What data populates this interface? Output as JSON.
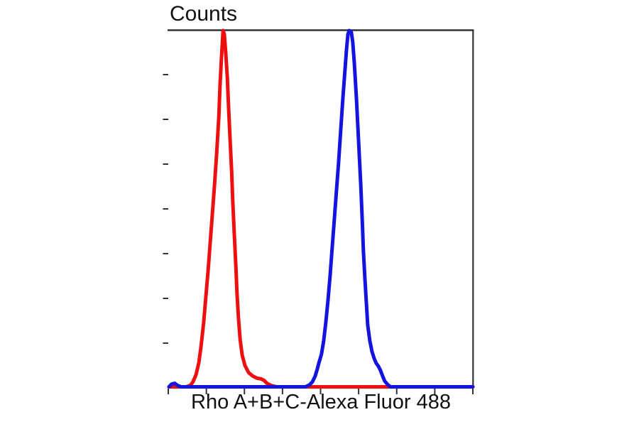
{
  "page": {
    "background_color": "#ffffff",
    "text_color": "#111111",
    "frame_color": "#333333"
  },
  "chart_data": {
    "type": "line",
    "subtype": "flow-cytometry-overlay-histogram",
    "title": "Counts",
    "xlabel": "Rho A+B+C-Alexa Fluor 488",
    "ylabel": "Counts",
    "grid": false,
    "legend_position": "none",
    "x_tick_labels": [],
    "y_tick_labels": [],
    "x_tick_count": 9,
    "y_tick_count": 7,
    "xlim_normalized": [
      0,
      1
    ],
    "ylim_normalized": [
      0,
      1
    ],
    "series": [
      {
        "name": "red-peak",
        "color": "#ee1010",
        "peak_x_normalized": 0.178,
        "peak_y_normalized": 1.0,
        "points": [
          [
            0,
            0
          ],
          [
            0.056,
            0
          ],
          [
            0.07,
            0.004
          ],
          [
            0.079,
            0.014
          ],
          [
            0.089,
            0.034
          ],
          [
            0.098,
            0.066
          ],
          [
            0.105,
            0.109
          ],
          [
            0.114,
            0.179
          ],
          [
            0.121,
            0.249
          ],
          [
            0.129,
            0.328
          ],
          [
            0.136,
            0.408
          ],
          [
            0.143,
            0.487
          ],
          [
            0.15,
            0.567
          ],
          [
            0.157,
            0.656
          ],
          [
            0.164,
            0.756
          ],
          [
            0.168,
            0.845
          ],
          [
            0.173,
            0.924
          ],
          [
            0.178,
            0.998
          ],
          [
            0.182,
            0.988
          ],
          [
            0.187,
            0.934
          ],
          [
            0.192,
            0.865
          ],
          [
            0.196,
            0.785
          ],
          [
            0.201,
            0.696
          ],
          [
            0.206,
            0.606
          ],
          [
            0.21,
            0.517
          ],
          [
            0.215,
            0.427
          ],
          [
            0.22,
            0.338
          ],
          [
            0.224,
            0.258
          ],
          [
            0.229,
            0.189
          ],
          [
            0.234,
            0.133
          ],
          [
            0.241,
            0.089
          ],
          [
            0.25,
            0.06
          ],
          [
            0.262,
            0.04
          ],
          [
            0.276,
            0.03
          ],
          [
            0.29,
            0.024
          ],
          [
            0.304,
            0.022
          ],
          [
            0.313,
            0.018
          ],
          [
            0.322,
            0.01
          ],
          [
            0.336,
            0.004
          ],
          [
            0.355,
            0
          ],
          [
            1,
            0
          ]
        ]
      },
      {
        "name": "blue-peak",
        "color": "#1414e0",
        "peak_x_normalized": 0.593,
        "peak_y_normalized": 1.0,
        "points": [
          [
            0,
            0
          ],
          [
            0.009,
            0.008
          ],
          [
            0.019,
            0.01
          ],
          [
            0.028,
            0.004
          ],
          [
            0.04,
            0
          ],
          [
            0.449,
            0
          ],
          [
            0.463,
            0.006
          ],
          [
            0.472,
            0.014
          ],
          [
            0.481,
            0.03
          ],
          [
            0.488,
            0.05
          ],
          [
            0.493,
            0.066
          ],
          [
            0.498,
            0.08
          ],
          [
            0.502,
            0.093
          ],
          [
            0.509,
            0.129
          ],
          [
            0.516,
            0.179
          ],
          [
            0.523,
            0.239
          ],
          [
            0.53,
            0.308
          ],
          [
            0.537,
            0.388
          ],
          [
            0.544,
            0.467
          ],
          [
            0.551,
            0.547
          ],
          [
            0.558,
            0.626
          ],
          [
            0.565,
            0.716
          ],
          [
            0.572,
            0.805
          ],
          [
            0.579,
            0.885
          ],
          [
            0.584,
            0.944
          ],
          [
            0.589,
            0.988
          ],
          [
            0.593,
            0.998
          ],
          [
            0.6,
            0.994
          ],
          [
            0.605,
            0.964
          ],
          [
            0.61,
            0.905
          ],
          [
            0.617,
            0.805
          ],
          [
            0.624,
            0.686
          ],
          [
            0.631,
            0.567
          ],
          [
            0.636,
            0.467
          ],
          [
            0.64,
            0.378
          ],
          [
            0.645,
            0.298
          ],
          [
            0.65,
            0.229
          ],
          [
            0.654,
            0.173
          ],
          [
            0.661,
            0.129
          ],
          [
            0.668,
            0.099
          ],
          [
            0.675,
            0.08
          ],
          [
            0.682,
            0.066
          ],
          [
            0.689,
            0.058
          ],
          [
            0.696,
            0.046
          ],
          [
            0.703,
            0.03
          ],
          [
            0.71,
            0.016
          ],
          [
            0.72,
            0.006
          ],
          [
            0.729,
            0
          ],
          [
            1,
            0
          ]
        ]
      }
    ]
  }
}
